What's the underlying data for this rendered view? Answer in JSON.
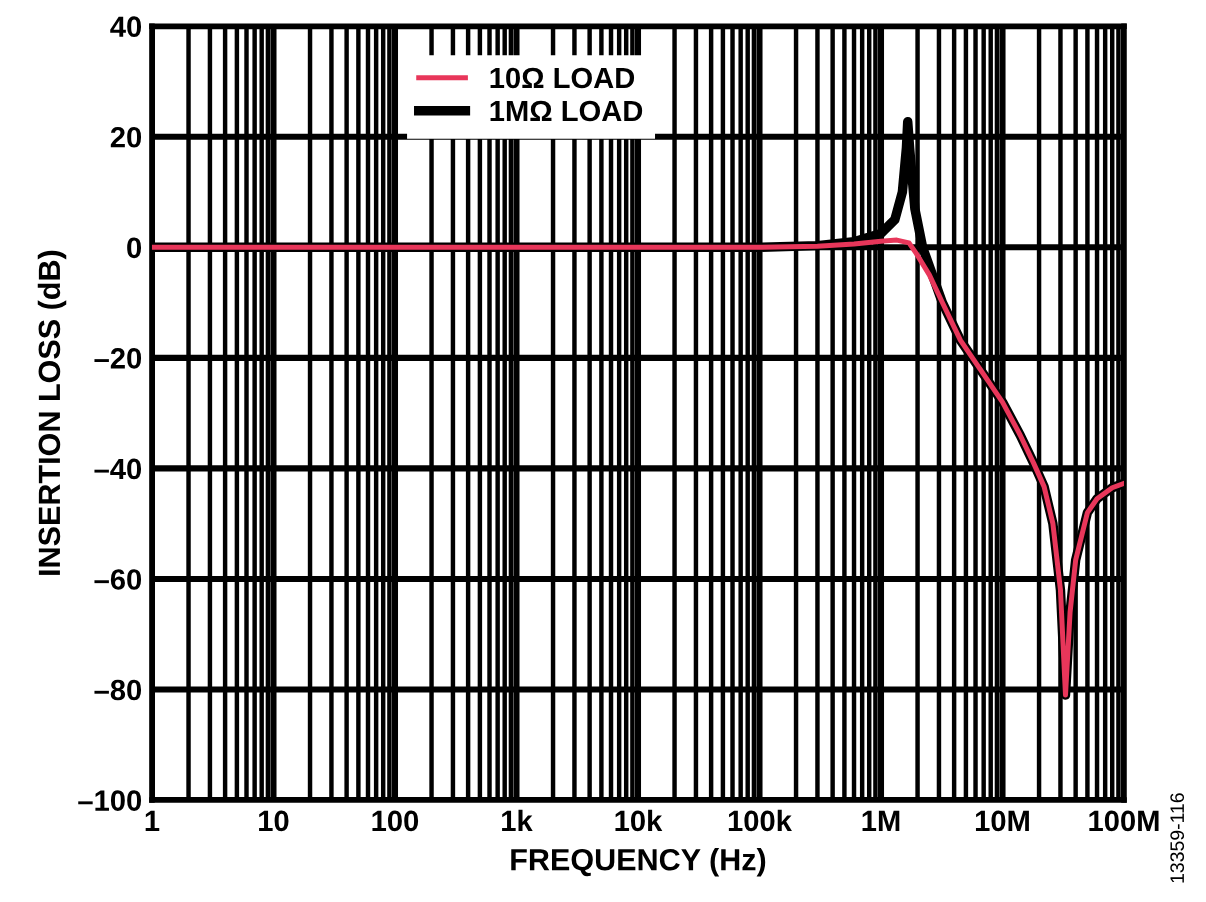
{
  "chart_data": {
    "type": "line",
    "xlabel": "FREQUENCY (Hz)",
    "ylabel": "INSERTION LOSS (dB)",
    "log": "x",
    "grid": true,
    "legend": "top",
    "xlim": [
      1,
      100000000
    ],
    "ylim": [
      -100,
      40
    ],
    "xticks": [
      {
        "value": 1,
        "label": "1"
      },
      {
        "value": 10,
        "label": "10"
      },
      {
        "value": 100,
        "label": "100"
      },
      {
        "value": 1000,
        "label": "1k"
      },
      {
        "value": 10000,
        "label": "10k"
      },
      {
        "value": 100000,
        "label": "100k"
      },
      {
        "value": 1000000,
        "label": "1M"
      },
      {
        "value": 10000000,
        "label": "10M"
      },
      {
        "value": 100000000,
        "label": "100M"
      }
    ],
    "yticks": [
      {
        "value": -100,
        "label": "–100"
      },
      {
        "value": -80,
        "label": "–80"
      },
      {
        "value": -60,
        "label": "–60"
      },
      {
        "value": -40,
        "label": "–40"
      },
      {
        "value": -20,
        "label": "–20"
      },
      0,
      20,
      40
    ],
    "annotations": [
      "13359-116"
    ],
    "series": [
      {
        "name": "10Ω LOAD",
        "color": "#e8365a",
        "x": [
          1,
          1000,
          100000,
          300000,
          600000,
          1000000,
          1350000,
          1700000,
          1950000,
          2500000,
          3200000,
          4500000,
          7000000,
          10000000,
          14000000,
          18000000,
          22000000,
          26000000,
          30000000,
          33000000,
          36000000,
          40000000,
          50000000,
          60000000,
          80000000,
          100000000
        ],
        "values": [
          0,
          0,
          0,
          0.2,
          0.6,
          1.1,
          1.3,
          0.8,
          -1.1,
          -5,
          -10,
          -16.8,
          -23,
          -28,
          -34,
          -39,
          -43.3,
          -50,
          -62,
          -81,
          -66,
          -56.6,
          -48,
          -45.5,
          -43.5,
          -42.7
        ]
      },
      {
        "name": "1MΩ LOAD",
        "color": "#000000",
        "x": [
          1,
          1000,
          100000,
          300000,
          600000,
          1000000,
          1300000,
          1500000,
          1620000,
          1660000,
          1720000,
          1900000,
          2200000,
          3200000,
          4500000,
          7000000,
          10000000,
          14000000,
          18000000,
          22000000,
          26000000,
          30000000,
          33000000,
          36000000,
          40000000,
          50000000,
          60000000,
          80000000,
          100000000
        ],
        "values": [
          0,
          0,
          0,
          0.3,
          1,
          2.5,
          5,
          10,
          18,
          22.7,
          18,
          7,
          0,
          -10,
          -16.8,
          -23,
          -28,
          -34,
          -39,
          -43.3,
          -50,
          -62,
          -81,
          -66,
          -56.6,
          -48,
          -45.5,
          -43.5,
          -42.7
        ]
      }
    ]
  }
}
